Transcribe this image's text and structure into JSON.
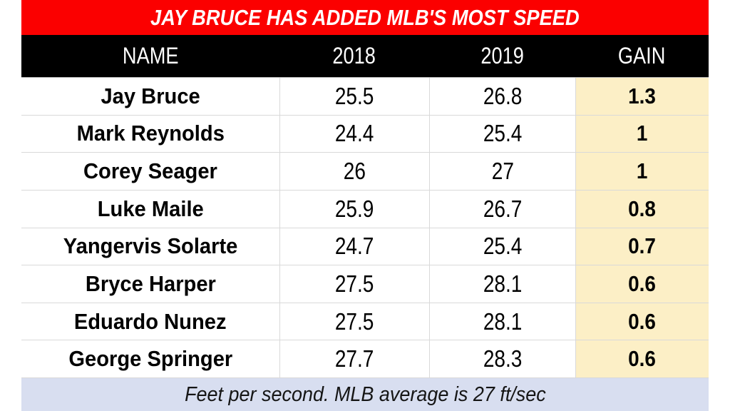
{
  "title": "JAY BRUCE HAS ADDED MLB'S MOST SPEED",
  "table": {
    "columns": [
      "NAME",
      "2018",
      "2019",
      "GAIN"
    ],
    "rows": [
      {
        "cells": [
          "Jay Bruce",
          "25.5",
          "26.8",
          "1.3"
        ]
      },
      {
        "cells": [
          "Mark Reynolds",
          "24.4",
          "25.4",
          "1"
        ]
      },
      {
        "cells": [
          "Corey Seager",
          "26",
          "27",
          "1"
        ]
      },
      {
        "cells": [
          "Luke Maile",
          "25.9",
          "26.7",
          "0.8"
        ]
      },
      {
        "cells": [
          "Yangervis Solarte",
          "24.7",
          "25.4",
          "0.7"
        ]
      },
      {
        "cells": [
          "Bryce Harper",
          "27.5",
          "28.1",
          "0.6"
        ]
      },
      {
        "cells": [
          "Eduardo Nunez",
          "27.5",
          "28.1",
          "0.6"
        ]
      },
      {
        "cells": [
          "George Springer",
          "27.7",
          "28.3",
          "0.6"
        ]
      }
    ]
  },
  "footer": "Feet per second. MLB average is 27 ft/sec",
  "colors": {
    "title_bg": "#fb0000",
    "title_text": "#ffffff",
    "header_bg": "#000000",
    "header_text": "#ffffff",
    "gain_col_bg": "#fcefc6",
    "footer_bg": "#d8def0",
    "row_divider": "#d9d9d9",
    "text": "#000000"
  },
  "chart_data": {
    "type": "table",
    "title": "JAY BRUCE HAS ADDED MLB'S MOST SPEED",
    "columns": [
      "NAME",
      "2018",
      "2019",
      "GAIN"
    ],
    "rows": [
      [
        "Jay Bruce",
        25.5,
        26.8,
        1.3
      ],
      [
        "Mark Reynolds",
        24.4,
        25.4,
        1
      ],
      [
        "Corey Seager",
        26,
        27,
        1
      ],
      [
        "Luke Maile",
        25.9,
        26.7,
        0.8
      ],
      [
        "Yangervis Solarte",
        24.7,
        25.4,
        0.7
      ],
      [
        "Bryce Harper",
        27.5,
        28.1,
        0.6
      ],
      [
        "Eduardo Nunez",
        27.5,
        28.1,
        0.6
      ],
      [
        "George Springer",
        27.7,
        28.3,
        0.6
      ]
    ],
    "note": "Feet per second. MLB average is 27 ft/sec",
    "units": "ft/sec"
  }
}
